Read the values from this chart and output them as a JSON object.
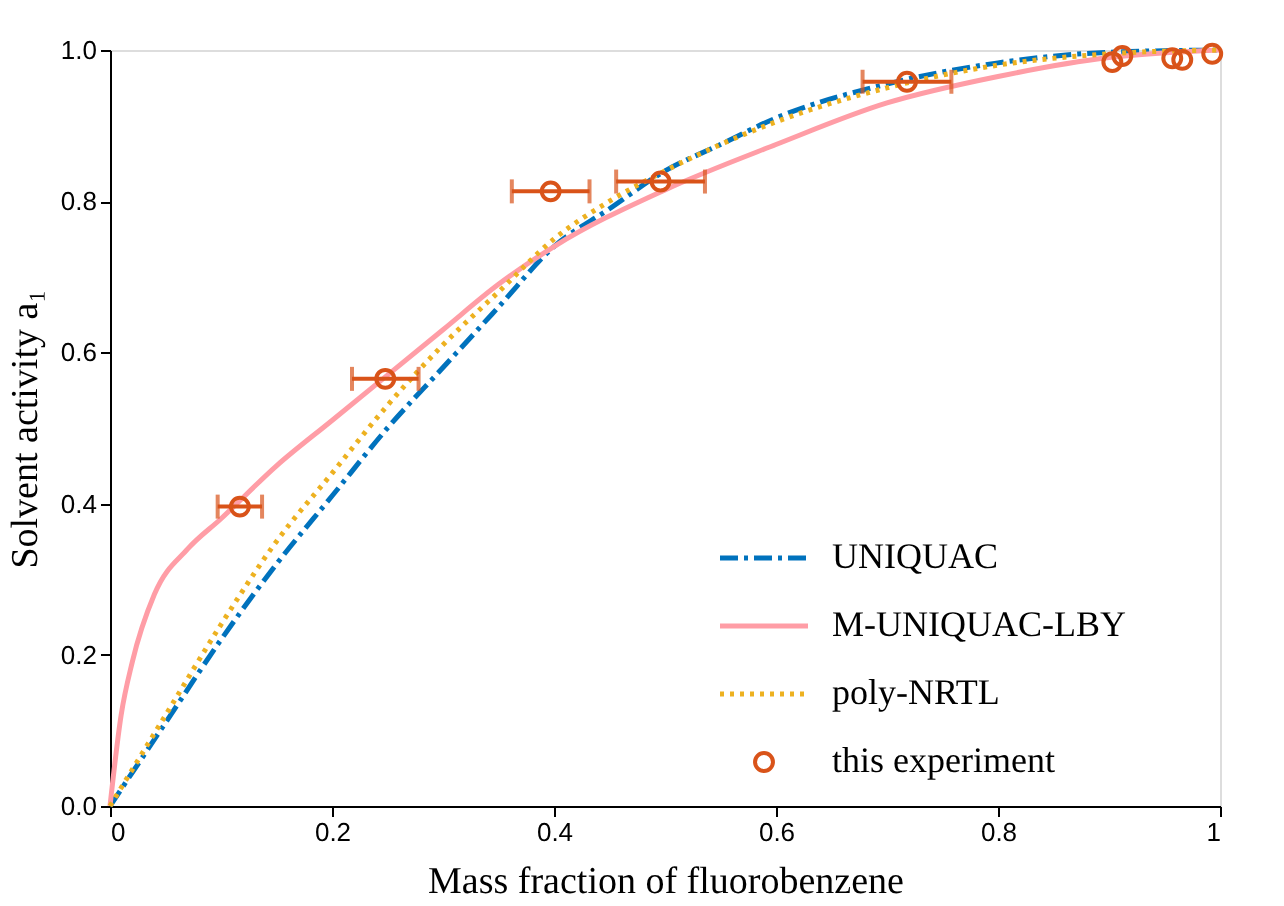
{
  "chart_data": {
    "type": "line",
    "xlabel": "Mass fraction of fluorobenzene",
    "ylabel": "Solvent activity  a₁",
    "xlim": [
      0,
      1
    ],
    "ylim": [
      0,
      1
    ],
    "xticks": [
      0,
      0.2,
      0.4,
      0.6,
      0.8,
      1
    ],
    "yticks": [
      {
        "value": 0,
        "label": "0.0"
      },
      0.2,
      0.4,
      0.6,
      0.8,
      {
        "value": 1,
        "label": "1.0"
      }
    ],
    "legend": "bottom right",
    "grid": false,
    "series": [
      {
        "name": "UNIQUAC",
        "color": "#0072bd",
        "line_style": "dashed",
        "marker": "none",
        "x": [
          0,
          0.05,
          0.1,
          0.15,
          0.2,
          0.25,
          0.3,
          0.35,
          0.4,
          0.45,
          0.5,
          0.55,
          0.6,
          0.7,
          0.8,
          0.9,
          1
        ],
        "values": [
          0,
          0.11,
          0.22,
          0.32,
          0.41,
          0.5,
          0.58,
          0.66,
          0.74,
          0.79,
          0.84,
          0.875,
          0.91,
          0.955,
          0.983,
          0.997,
          1
        ]
      },
      {
        "name": "M-UNIQUAC-LBY",
        "color": "#ff9da6",
        "line_style": "solid",
        "marker": "none",
        "x": [
          0,
          0.01,
          0.02,
          0.04,
          0.07,
          0.1,
          0.15,
          0.2,
          0.25,
          0.3,
          0.35,
          0.4,
          0.5,
          0.6,
          0.7,
          0.8,
          0.9,
          1
        ],
        "values": [
          0,
          0.12,
          0.19,
          0.28,
          0.34,
          0.38,
          0.45,
          0.51,
          0.57,
          0.63,
          0.69,
          0.74,
          0.815,
          0.875,
          0.93,
          0.965,
          0.99,
          1
        ]
      },
      {
        "name": "poly-NRTL",
        "color": "#edb120",
        "line_style": "dotted",
        "marker": "none",
        "x": [
          0,
          0.05,
          0.1,
          0.15,
          0.2,
          0.25,
          0.3,
          0.35,
          0.4,
          0.45,
          0.5,
          0.6,
          0.7,
          0.8,
          0.9,
          1
        ],
        "values": [
          0,
          0.12,
          0.24,
          0.35,
          0.44,
          0.53,
          0.61,
          0.68,
          0.75,
          0.8,
          0.84,
          0.905,
          0.95,
          0.98,
          0.995,
          1
        ]
      },
      {
        "name": "this experiment",
        "type": "scatter",
        "color": "#d95319",
        "marker": "circle",
        "x": [
          0.117,
          0.248,
          0.397,
          0.496,
          0.718,
          0.903,
          0.912,
          0.957,
          0.966,
          0.993
        ],
        "values": [
          0.396,
          0.565,
          0.813,
          0.826,
          0.958,
          0.984,
          0.992,
          0.989,
          0.987,
          0.995
        ],
        "xerrors": [
          0.02,
          0.03,
          0.035,
          0.04,
          0.04,
          null,
          null,
          null,
          null,
          null
        ]
      }
    ]
  }
}
